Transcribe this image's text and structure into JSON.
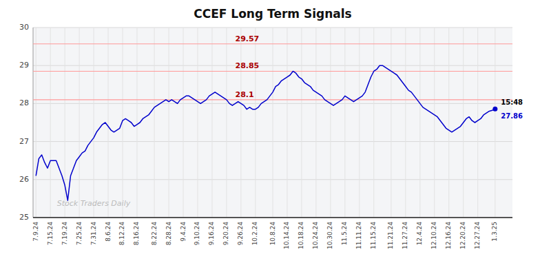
{
  "chart_data": {
    "type": "line",
    "title": "CCEF Long Term Signals",
    "color": "#0000cc",
    "ylim": [
      25,
      30
    ],
    "yticks": [
      25,
      26,
      27,
      28,
      29,
      30
    ],
    "grid": true,
    "categories": [
      "7.9.24",
      null,
      null,
      null,
      null,
      "7.15.24",
      null,
      null,
      null,
      null,
      "7.19.24",
      null,
      null,
      null,
      null,
      "7.25.24",
      null,
      null,
      null,
      null,
      "7.31.24",
      null,
      null,
      null,
      null,
      "8.6.24",
      null,
      null,
      null,
      null,
      "8.12.24",
      null,
      null,
      null,
      null,
      "8.16.24",
      null,
      null,
      null,
      null,
      null,
      "8.22.24",
      null,
      null,
      null,
      null,
      "8.28.24",
      null,
      null,
      null,
      null,
      "9.4.24",
      null,
      null,
      null,
      null,
      "9.10.24",
      null,
      null,
      null,
      null,
      "9.16.24",
      null,
      null,
      null,
      null,
      "9.20.24",
      null,
      null,
      null,
      null,
      "9.26.24",
      null,
      null,
      null,
      null,
      "10.2.24",
      null,
      null,
      null,
      null,
      null,
      "10.8.24",
      null,
      null,
      null,
      null,
      "10.14.24",
      null,
      null,
      null,
      null,
      "10.18.24",
      null,
      null,
      null,
      null,
      "10.24.24",
      null,
      null,
      null,
      null,
      "10.30.24",
      null,
      null,
      null,
      null,
      "11.5.24",
      null,
      null,
      null,
      null,
      "11.11.24",
      null,
      null,
      null,
      null,
      "11.15.24",
      null,
      null,
      null,
      null,
      null,
      "11.21.24",
      null,
      null,
      null,
      null,
      "11.27.24",
      null,
      null,
      null,
      null,
      "12.4.24",
      null,
      null,
      null,
      null,
      "12.10.24",
      null,
      null,
      null,
      null,
      "12.16.24",
      null,
      null,
      null,
      null,
      "12.20.24",
      null,
      null,
      null,
      null,
      "12.27.24",
      null,
      null,
      null,
      null,
      null,
      "1.3.25"
    ],
    "values": [
      26.1,
      26.55,
      26.65,
      26.45,
      26.3,
      26.5,
      26.5,
      26.5,
      26.3,
      26.1,
      25.85,
      25.45,
      26.1,
      26.3,
      26.5,
      26.6,
      26.7,
      26.75,
      26.9,
      27.0,
      27.1,
      27.25,
      27.35,
      27.45,
      27.5,
      27.4,
      27.3,
      27.25,
      27.3,
      27.35,
      27.55,
      27.6,
      27.55,
      27.5,
      27.4,
      27.45,
      27.5,
      27.6,
      27.65,
      27.7,
      27.8,
      27.9,
      27.95,
      28.0,
      28.05,
      28.1,
      28.05,
      28.1,
      28.05,
      28.0,
      28.1,
      28.15,
      28.2,
      28.2,
      28.15,
      28.1,
      28.05,
      28.0,
      28.05,
      28.1,
      28.2,
      28.25,
      28.3,
      28.25,
      28.2,
      28.15,
      28.1,
      28.0,
      27.95,
      28.0,
      28.05,
      28.0,
      27.95,
      27.85,
      27.9,
      27.85,
      27.85,
      27.9,
      28.0,
      28.05,
      28.1,
      28.2,
      28.3,
      28.45,
      28.5,
      28.6,
      28.65,
      28.7,
      28.75,
      28.85,
      28.8,
      28.7,
      28.65,
      28.55,
      28.5,
      28.45,
      28.35,
      28.3,
      28.25,
      28.2,
      28.1,
      28.05,
      28.0,
      27.95,
      28.0,
      28.05,
      28.1,
      28.2,
      28.15,
      28.1,
      28.05,
      28.1,
      28.15,
      28.2,
      28.3,
      28.5,
      28.7,
      28.85,
      28.9,
      29.0,
      29.0,
      28.95,
      28.9,
      28.85,
      28.8,
      28.75,
      28.65,
      28.55,
      28.45,
      28.35,
      28.3,
      28.2,
      28.1,
      28.0,
      27.9,
      27.85,
      27.8,
      27.75,
      27.7,
      27.65,
      27.55,
      27.45,
      27.35,
      27.3,
      27.25,
      27.3,
      27.35,
      27.4,
      27.5,
      27.6,
      27.65,
      27.55,
      27.5,
      27.55,
      27.6,
      27.7,
      27.75,
      27.8,
      27.82,
      27.86
    ],
    "hlines": [
      {
        "y": 29.57,
        "label": "29.57",
        "color": "#ff9999"
      },
      {
        "y": 28.85,
        "label": "28.85",
        "color": "#ff9999"
      },
      {
        "y": 28.1,
        "label": "28.1",
        "color": "#ff9999"
      }
    ],
    "last_point": {
      "label": "15:48",
      "value": 27.86,
      "value_label": "27.86"
    },
    "watermark": "Stock Traders Daily"
  }
}
